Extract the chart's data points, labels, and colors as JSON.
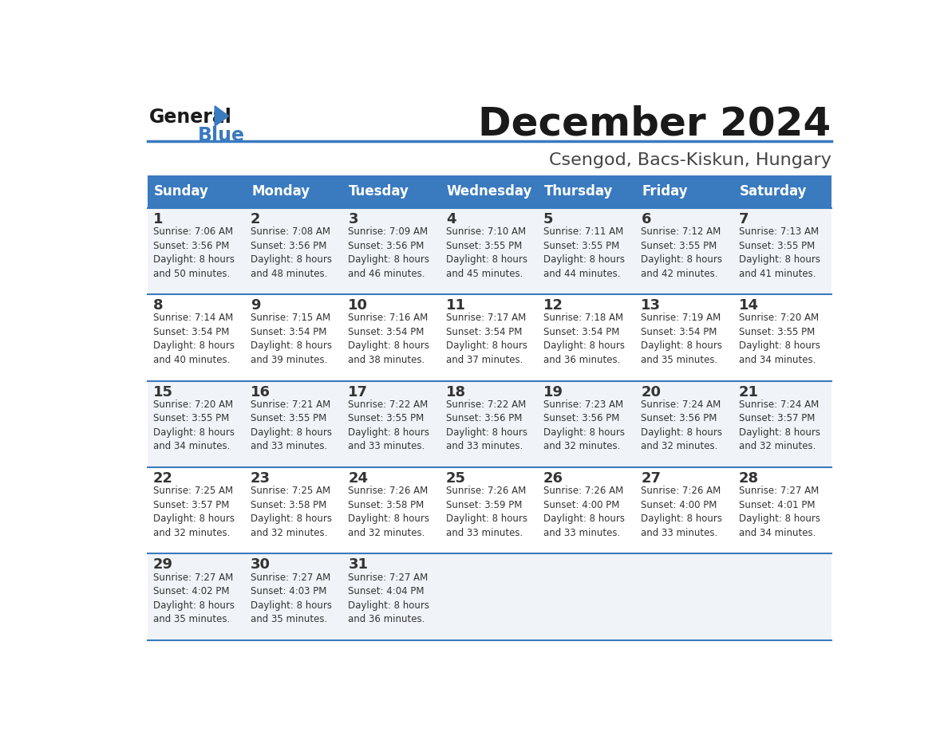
{
  "title": "December 2024",
  "subtitle": "Csengod, Bacs-Kiskun, Hungary",
  "header_color": "#3a7abf",
  "header_text_color": "#ffffff",
  "cell_bg_even": "#f0f4f8",
  "cell_bg_odd": "#ffffff",
  "border_color": "#3a7abf",
  "text_color": "#333333",
  "days_of_week": [
    "Sunday",
    "Monday",
    "Tuesday",
    "Wednesday",
    "Thursday",
    "Friday",
    "Saturday"
  ],
  "weeks": [
    [
      {
        "day": 1,
        "sunrise": "7:06 AM",
        "sunset": "3:56 PM",
        "daylight_hours": 8,
        "daylight_minutes": 50
      },
      {
        "day": 2,
        "sunrise": "7:08 AM",
        "sunset": "3:56 PM",
        "daylight_hours": 8,
        "daylight_minutes": 48
      },
      {
        "day": 3,
        "sunrise": "7:09 AM",
        "sunset": "3:56 PM",
        "daylight_hours": 8,
        "daylight_minutes": 46
      },
      {
        "day": 4,
        "sunrise": "7:10 AM",
        "sunset": "3:55 PM",
        "daylight_hours": 8,
        "daylight_minutes": 45
      },
      {
        "day": 5,
        "sunrise": "7:11 AM",
        "sunset": "3:55 PM",
        "daylight_hours": 8,
        "daylight_minutes": 44
      },
      {
        "day": 6,
        "sunrise": "7:12 AM",
        "sunset": "3:55 PM",
        "daylight_hours": 8,
        "daylight_minutes": 42
      },
      {
        "day": 7,
        "sunrise": "7:13 AM",
        "sunset": "3:55 PM",
        "daylight_hours": 8,
        "daylight_minutes": 41
      }
    ],
    [
      {
        "day": 8,
        "sunrise": "7:14 AM",
        "sunset": "3:54 PM",
        "daylight_hours": 8,
        "daylight_minutes": 40
      },
      {
        "day": 9,
        "sunrise": "7:15 AM",
        "sunset": "3:54 PM",
        "daylight_hours": 8,
        "daylight_minutes": 39
      },
      {
        "day": 10,
        "sunrise": "7:16 AM",
        "sunset": "3:54 PM",
        "daylight_hours": 8,
        "daylight_minutes": 38
      },
      {
        "day": 11,
        "sunrise": "7:17 AM",
        "sunset": "3:54 PM",
        "daylight_hours": 8,
        "daylight_minutes": 37
      },
      {
        "day": 12,
        "sunrise": "7:18 AM",
        "sunset": "3:54 PM",
        "daylight_hours": 8,
        "daylight_minutes": 36
      },
      {
        "day": 13,
        "sunrise": "7:19 AM",
        "sunset": "3:54 PM",
        "daylight_hours": 8,
        "daylight_minutes": 35
      },
      {
        "day": 14,
        "sunrise": "7:20 AM",
        "sunset": "3:55 PM",
        "daylight_hours": 8,
        "daylight_minutes": 34
      }
    ],
    [
      {
        "day": 15,
        "sunrise": "7:20 AM",
        "sunset": "3:55 PM",
        "daylight_hours": 8,
        "daylight_minutes": 34
      },
      {
        "day": 16,
        "sunrise": "7:21 AM",
        "sunset": "3:55 PM",
        "daylight_hours": 8,
        "daylight_minutes": 33
      },
      {
        "day": 17,
        "sunrise": "7:22 AM",
        "sunset": "3:55 PM",
        "daylight_hours": 8,
        "daylight_minutes": 33
      },
      {
        "day": 18,
        "sunrise": "7:22 AM",
        "sunset": "3:56 PM",
        "daylight_hours": 8,
        "daylight_minutes": 33
      },
      {
        "day": 19,
        "sunrise": "7:23 AM",
        "sunset": "3:56 PM",
        "daylight_hours": 8,
        "daylight_minutes": 32
      },
      {
        "day": 20,
        "sunrise": "7:24 AM",
        "sunset": "3:56 PM",
        "daylight_hours": 8,
        "daylight_minutes": 32
      },
      {
        "day": 21,
        "sunrise": "7:24 AM",
        "sunset": "3:57 PM",
        "daylight_hours": 8,
        "daylight_minutes": 32
      }
    ],
    [
      {
        "day": 22,
        "sunrise": "7:25 AM",
        "sunset": "3:57 PM",
        "daylight_hours": 8,
        "daylight_minutes": 32
      },
      {
        "day": 23,
        "sunrise": "7:25 AM",
        "sunset": "3:58 PM",
        "daylight_hours": 8,
        "daylight_minutes": 32
      },
      {
        "day": 24,
        "sunrise": "7:26 AM",
        "sunset": "3:58 PM",
        "daylight_hours": 8,
        "daylight_minutes": 32
      },
      {
        "day": 25,
        "sunrise": "7:26 AM",
        "sunset": "3:59 PM",
        "daylight_hours": 8,
        "daylight_minutes": 33
      },
      {
        "day": 26,
        "sunrise": "7:26 AM",
        "sunset": "4:00 PM",
        "daylight_hours": 8,
        "daylight_minutes": 33
      },
      {
        "day": 27,
        "sunrise": "7:26 AM",
        "sunset": "4:00 PM",
        "daylight_hours": 8,
        "daylight_minutes": 33
      },
      {
        "day": 28,
        "sunrise": "7:27 AM",
        "sunset": "4:01 PM",
        "daylight_hours": 8,
        "daylight_minutes": 34
      }
    ],
    [
      {
        "day": 29,
        "sunrise": "7:27 AM",
        "sunset": "4:02 PM",
        "daylight_hours": 8,
        "daylight_minutes": 35
      },
      {
        "day": 30,
        "sunrise": "7:27 AM",
        "sunset": "4:03 PM",
        "daylight_hours": 8,
        "daylight_minutes": 35
      },
      {
        "day": 31,
        "sunrise": "7:27 AM",
        "sunset": "4:04 PM",
        "daylight_hours": 8,
        "daylight_minutes": 36
      },
      null,
      null,
      null,
      null
    ]
  ]
}
